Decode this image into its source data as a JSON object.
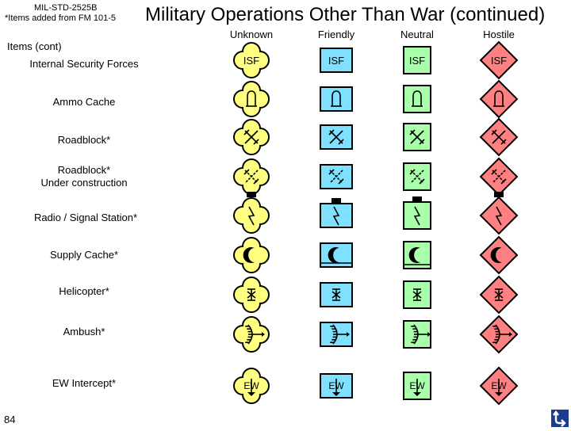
{
  "header": {
    "standard": "MIL-STD-2525B",
    "note": "*Items added from FM 101-5",
    "title": "Military Operations Other Than War (continued)"
  },
  "columns": [
    "Unknown",
    "Friendly",
    "Neutral",
    "Hostile"
  ],
  "section_label": "Items (cont)",
  "rows": [
    {
      "label": "Internal Security Forces",
      "glyph": "text-isf",
      "text": "ISF"
    },
    {
      "label": "Ammo Cache",
      "glyph": "ammo-icon"
    },
    {
      "label": "Roadblock*",
      "glyph": "roadblock-icon"
    },
    {
      "label": "Roadblock*\nUnder construction",
      "glyph": "roadblock-construction-icon"
    },
    {
      "label": "Radio / Signal Station*",
      "glyph": "radio-signal-icon"
    },
    {
      "label": "Supply Cache*",
      "glyph": "supply-cache-icon"
    },
    {
      "label": "Helicopter*",
      "glyph": "helicopter-icon"
    },
    {
      "label": "Ambush*",
      "glyph": "ambush-icon"
    },
    {
      "label": "EW Intercept*",
      "glyph": "ew-intercept-icon",
      "text": "EW"
    }
  ],
  "frame_colors": {
    "unknown": "#ffff80",
    "friendly": "#80e0ff",
    "neutral": "#aaffaa",
    "hostile": "#ff8080"
  },
  "page_number": "84",
  "nav_button_icon": "return-arrow-icon"
}
